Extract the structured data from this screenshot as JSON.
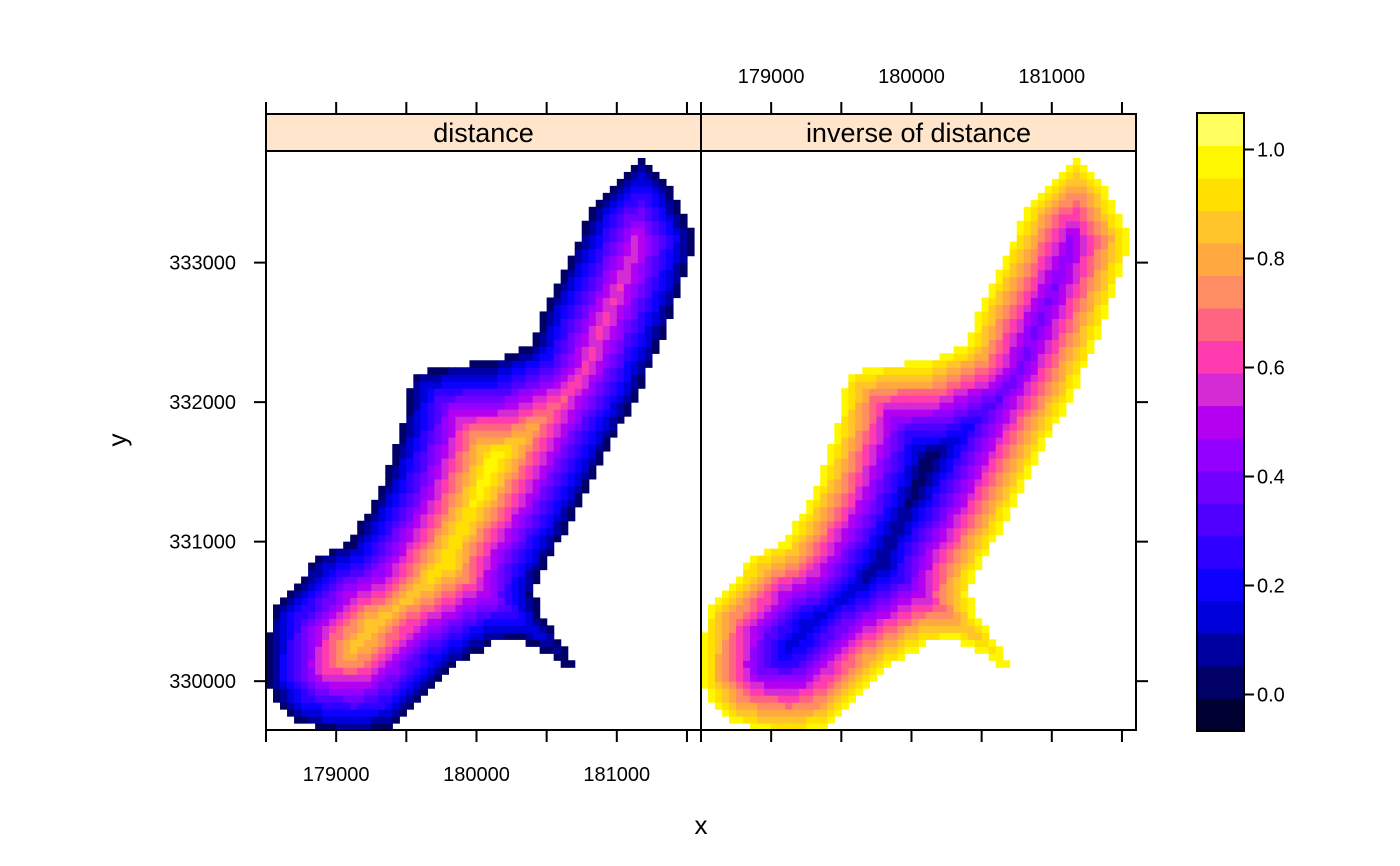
{
  "chart_data": {
    "type": "heatmap",
    "layout": "two panels side by side, shared axes, color key on the right",
    "xlabel": "x",
    "ylabel": "y",
    "x_ticks": [
      179000,
      180000,
      181000
    ],
    "y_ticks": [
      330000,
      331000,
      332000,
      333000
    ],
    "xlim": [
      178500,
      181600
    ],
    "ylim": [
      329650,
      333800
    ],
    "panels": [
      {
        "strip_label": "distance",
        "field": "normalized distance from the area's outer boundary (0 at the edge, rising toward the interior; maximum near x=180400, y=331200)"
      },
      {
        "strip_label": "inverse of distance",
        "field": "1 minus the normalized distance (1 at the edge, falling to 0 near x=180400, y=331200)"
      }
    ],
    "colorkey": {
      "ticks": [
        0.0,
        0.2,
        0.4,
        0.6,
        0.8,
        1.0
      ],
      "tick_labels": [
        "0.0",
        "0.2",
        "0.4",
        "0.6",
        "0.8",
        "1.0"
      ],
      "range": [
        -0.067,
        1.067
      ],
      "colors": [
        "#000033",
        "#000066",
        "#0000A0",
        "#0000DA",
        "#0E00FF",
        "#2F00FF",
        "#5000FF",
        "#7200FF",
        "#9300FF",
        "#B400F0",
        "#D52BD5",
        "#FF3BB0",
        "#FF6480",
        "#FF8D64",
        "#FFA940",
        "#FFC52A",
        "#FFE000",
        "#FFF700",
        "#FFFF60"
      ]
    },
    "region_outline": [
      [
        178500,
        330160
      ],
      [
        178550,
        330530
      ],
      [
        178700,
        330680
      ],
      [
        178880,
        330900
      ],
      [
        179100,
        331000
      ],
      [
        179250,
        331250
      ],
      [
        179350,
        331450
      ],
      [
        179480,
        331850
      ],
      [
        179550,
        332200
      ],
      [
        179820,
        332270
      ],
      [
        180100,
        332280
      ],
      [
        180400,
        332420
      ],
      [
        180500,
        332700
      ],
      [
        180650,
        333000
      ],
      [
        180850,
        333450
      ],
      [
        181180,
        333730
      ],
      [
        181350,
        333600
      ],
      [
        181520,
        333250
      ],
      [
        181560,
        333180
      ],
      [
        181450,
        332800
      ],
      [
        181300,
        332400
      ],
      [
        181150,
        332050
      ],
      [
        180950,
        331700
      ],
      [
        180750,
        331300
      ],
      [
        180620,
        331050
      ],
      [
        180440,
        330750
      ],
      [
        180410,
        330630
      ],
      [
        180450,
        330500
      ],
      [
        180590,
        330300
      ],
      [
        180700,
        330120
      ],
      [
        180650,
        330100
      ],
      [
        180500,
        330200
      ],
      [
        180300,
        330300
      ],
      [
        180120,
        330280
      ],
      [
        179800,
        330080
      ],
      [
        179600,
        329850
      ],
      [
        179400,
        329680
      ],
      [
        179150,
        329620
      ],
      [
        178900,
        329650
      ],
      [
        178700,
        329720
      ],
      [
        178580,
        329860
      ],
      [
        178500,
        330000
      ]
    ],
    "interior_maximum": [
      180400,
      331200
    ],
    "grid_cell": 50
  }
}
